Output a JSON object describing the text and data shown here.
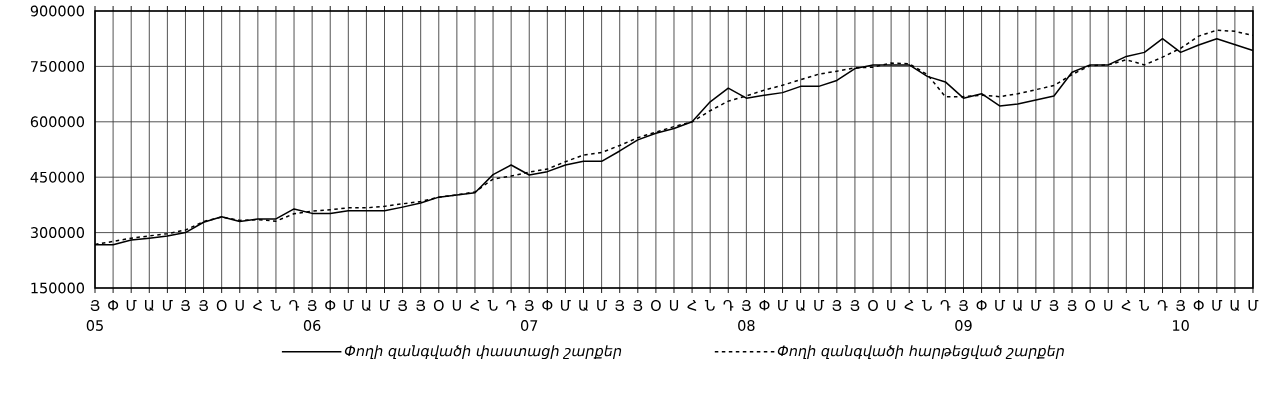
{
  "chart_data": {
    "type": "line",
    "categories": [
      "Յ",
      "Փ",
      "Մ",
      "Ա",
      "Մ",
      "Յ",
      "Յ",
      "Օ",
      "Ս",
      "Հ",
      "Ն",
      "Դ",
      "Յ",
      "Փ",
      "Մ",
      "Ա",
      "Մ",
      "Յ",
      "Յ",
      "Օ",
      "Ս",
      "Հ",
      "Ն",
      "Դ",
      "Յ",
      "Փ",
      "Մ",
      "Ա",
      "Մ",
      "Յ",
      "Յ",
      "Օ",
      "Ս",
      "Հ",
      "Ն",
      "Դ",
      "Յ",
      "Փ",
      "Մ",
      "Ա",
      "Մ",
      "Յ",
      "Յ",
      "Օ",
      "Ս",
      "Հ",
      "Ն",
      "Դ",
      "Յ",
      "Փ",
      "Մ",
      "Ա",
      "Մ",
      "Յ",
      "Յ",
      "Օ",
      "Ս",
      "Հ",
      "Ն",
      "Դ",
      "Յ",
      "Փ",
      "Մ",
      "Ա",
      "Մ"
    ],
    "series": [
      {
        "name": "Փողի զանգվածի փաստացի շարքեր",
        "color": "#000000",
        "line_style": "solid",
        "values": [
          267000,
          267000,
          280000,
          285000,
          291000,
          300000,
          328000,
          343000,
          330000,
          337000,
          337000,
          364000,
          352000,
          352000,
          359000,
          359000,
          359000,
          369000,
          380000,
          396000,
          402000,
          408000,
          457000,
          483000,
          456000,
          465000,
          483000,
          493000,
          493000,
          521000,
          551000,
          569000,
          582000,
          600000,
          654000,
          691000,
          664000,
          672000,
          679000,
          696000,
          696000,
          712000,
          744000,
          754000,
          754000,
          754000,
          723000,
          708000,
          664000,
          676000,
          643000,
          648000,
          659000,
          670000,
          734000,
          754000,
          754000,
          777000,
          788000,
          825000,
          788000,
          808000,
          825000,
          809000,
          793000
        ]
      },
      {
        "name": "Փողի զանգվածի հարթեցված շարքեր",
        "color": "#000000",
        "line_style": "dashed",
        "values": [
          268000,
          276000,
          285000,
          291000,
          297000,
          307000,
          330000,
          342000,
          333000,
          335000,
          331000,
          351000,
          358000,
          362000,
          367000,
          367000,
          371000,
          378000,
          384000,
          396000,
          402000,
          410000,
          445000,
          453000,
          464000,
          472000,
          492000,
          510000,
          517000,
          536000,
          557000,
          572000,
          587000,
          600000,
          630000,
          656000,
          670000,
          686000,
          699000,
          714000,
          729000,
          737000,
          746000,
          748000,
          759000,
          757000,
          728000,
          668000,
          668000,
          672000,
          668000,
          676000,
          687000,
          698000,
          728000,
          752000,
          754000,
          768000,
          754000,
          775000,
          799000,
          832000,
          848000,
          845000,
          834000
        ]
      }
    ],
    "ylim": [
      150000,
      900000
    ],
    "yticks": [
      150000,
      300000,
      450000,
      600000,
      750000,
      900000
    ],
    "grid": true,
    "legend": "bottom",
    "annotations": [
      "05",
      "06",
      "07",
      "08",
      "09",
      "10"
    ]
  }
}
